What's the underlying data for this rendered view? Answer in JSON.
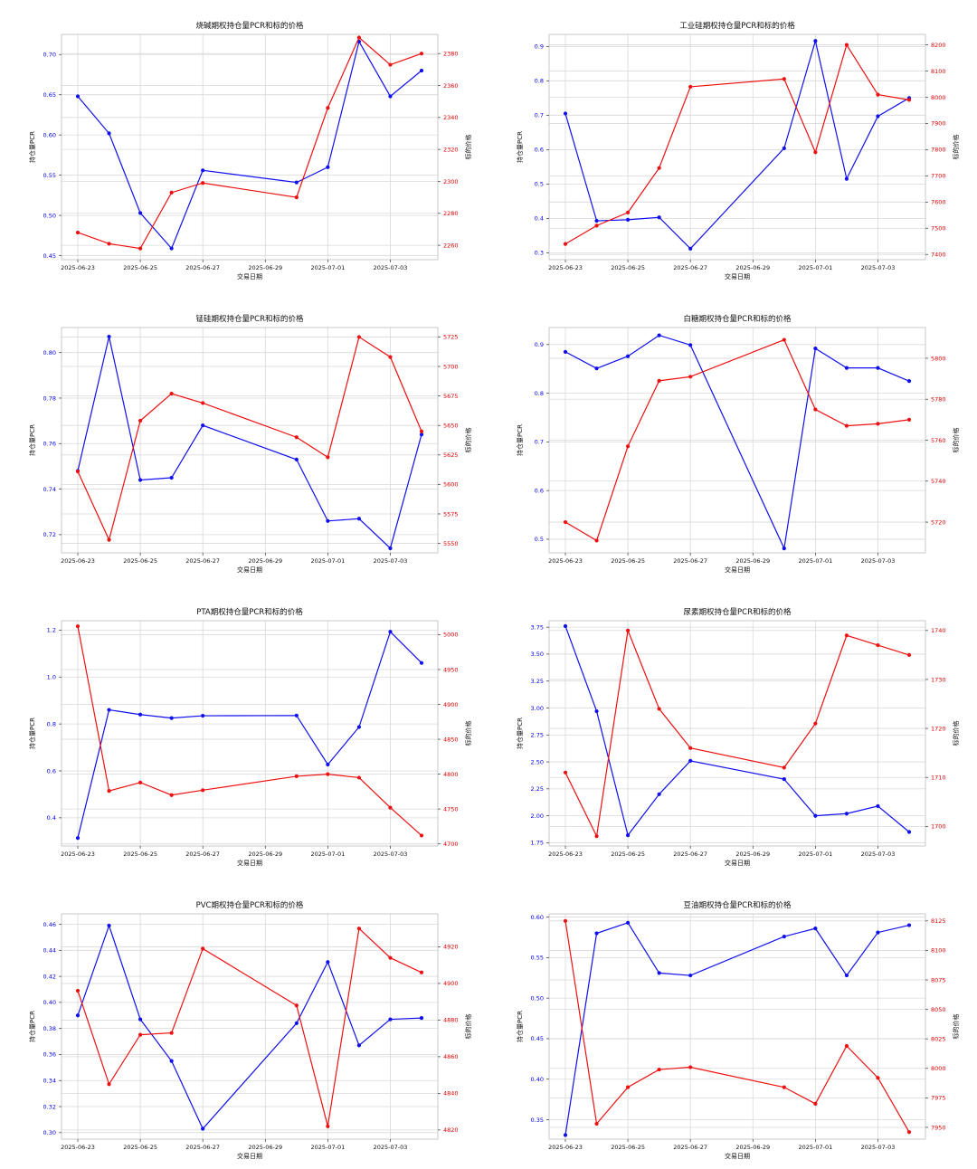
{
  "chart_data": [
    {
      "type": "line",
      "title": "烧碱期权持仓量PCR和标的价格",
      "xlabel": "交易日期",
      "ylabel_left": "持仓量PCR",
      "ylabel_right": "标的价格",
      "x": [
        "2025-06-23",
        "2025-06-24",
        "2025-06-25",
        "2025-06-26",
        "2025-06-27",
        "2025-06-30",
        "2025-07-01",
        "2025-07-02",
        "2025-07-03",
        "2025-07-04"
      ],
      "x_ticks": [
        "2025-06-23",
        "2025-06-25",
        "2025-06-27",
        "2025-06-29",
        "2025-07-01",
        "2025-07-03"
      ],
      "left_ylim": [
        0.445,
        0.725
      ],
      "left_ticks": [
        0.45,
        0.5,
        0.55,
        0.6,
        0.65,
        0.7
      ],
      "left_tick_labels": [
        "0.45",
        "0.50",
        "0.55",
        "0.60",
        "0.65",
        "0.70"
      ],
      "right_ylim": [
        2251,
        2392
      ],
      "right_ticks": [
        2260,
        2280,
        2300,
        2320,
        2340,
        2360,
        2380
      ],
      "right_tick_labels": [
        "2260",
        "2280",
        "2300",
        "2320",
        "2340",
        "2360",
        "2380"
      ],
      "series": [
        {
          "axis": "left",
          "color": "#1010ee",
          "values": [
            0.648,
            0.602,
            0.503,
            0.459,
            0.556,
            0.541,
            0.56,
            0.716,
            0.648,
            0.68
          ]
        },
        {
          "axis": "right",
          "color": "#ee1010",
          "values": [
            2268,
            2261,
            2258,
            2293,
            2299,
            2290,
            2346,
            2390,
            2373,
            2380
          ]
        }
      ]
    },
    {
      "type": "line",
      "title": "工业硅期权持仓量PCR和标的价格",
      "xlabel": "交易日期",
      "ylabel_left": "持仓量PCR",
      "ylabel_right": "标的价格",
      "x": [
        "2025-06-23",
        "2025-06-24",
        "2025-06-25",
        "2025-06-26",
        "2025-06-27",
        "2025-06-30",
        "2025-07-01",
        "2025-07-02",
        "2025-07-03",
        "2025-07-04"
      ],
      "x_ticks": [
        "2025-06-23",
        "2025-06-25",
        "2025-06-27",
        "2025-06-29",
        "2025-07-01",
        "2025-07-03"
      ],
      "left_ylim": [
        0.28,
        0.935
      ],
      "left_ticks": [
        0.3,
        0.4,
        0.5,
        0.6,
        0.7,
        0.8,
        0.9
      ],
      "left_tick_labels": [
        "0.3",
        "0.4",
        "0.5",
        "0.6",
        "0.7",
        "0.8",
        "0.9"
      ],
      "right_ylim": [
        7380,
        8240
      ],
      "right_ticks": [
        7400,
        7500,
        7600,
        7700,
        7800,
        7900,
        8000,
        8100,
        8200
      ],
      "right_tick_labels": [
        "7400",
        "7500",
        "7600",
        "7700",
        "7800",
        "7900",
        "8000",
        "8100",
        "8200"
      ],
      "series": [
        {
          "axis": "left",
          "color": "#1010ee",
          "values": [
            0.705,
            0.393,
            0.396,
            0.403,
            0.312,
            0.604,
            0.916,
            0.515,
            0.697,
            0.75
          ]
        },
        {
          "axis": "right",
          "color": "#ee1010",
          "values": [
            7440,
            7510,
            7560,
            7730,
            8040,
            8070,
            7790,
            8200,
            8010,
            7990
          ]
        }
      ]
    },
    {
      "type": "line",
      "title": "锰硅期权持仓量PCR和标的价格",
      "xlabel": "交易日期",
      "ylabel_left": "持仓量PCR",
      "ylabel_right": "标的价格",
      "x": [
        "2025-06-23",
        "2025-06-24",
        "2025-06-25",
        "2025-06-26",
        "2025-06-27",
        "2025-06-30",
        "2025-07-01",
        "2025-07-02",
        "2025-07-03",
        "2025-07-04"
      ],
      "x_ticks": [
        "2025-06-23",
        "2025-06-25",
        "2025-06-27",
        "2025-06-29",
        "2025-07-01",
        "2025-07-03"
      ],
      "left_ylim": [
        0.712,
        0.811
      ],
      "left_ticks": [
        0.72,
        0.74,
        0.76,
        0.78,
        0.8
      ],
      "left_tick_labels": [
        "0.72",
        "0.74",
        "0.76",
        "0.78",
        "0.80"
      ],
      "right_ylim": [
        5542,
        5733
      ],
      "right_ticks": [
        5550,
        5575,
        5600,
        5625,
        5650,
        5675,
        5700,
        5725
      ],
      "right_tick_labels": [
        "5550",
        "5575",
        "5600",
        "5625",
        "5650",
        "5675",
        "5700",
        "5725"
      ],
      "series": [
        {
          "axis": "left",
          "color": "#1010ee",
          "values": [
            0.748,
            0.807,
            0.744,
            0.745,
            0.768,
            0.753,
            0.726,
            0.727,
            0.714,
            0.764
          ]
        },
        {
          "axis": "right",
          "color": "#ee1010",
          "values": [
            5611,
            5553,
            5654,
            5677,
            5669,
            5640,
            5623,
            5725,
            5708,
            5645
          ]
        }
      ]
    },
    {
      "type": "line",
      "title": "白糖期权持仓量PCR和标的价格",
      "xlabel": "交易日期",
      "ylabel_left": "持仓量PCR",
      "ylabel_right": "标的价格",
      "x": [
        "2025-06-23",
        "2025-06-24",
        "2025-06-25",
        "2025-06-26",
        "2025-06-27",
        "2025-06-30",
        "2025-07-01",
        "2025-07-02",
        "2025-07-03",
        "2025-07-04"
      ],
      "x_ticks": [
        "2025-06-23",
        "2025-06-25",
        "2025-06-27",
        "2025-06-29",
        "2025-07-01",
        "2025-07-03"
      ],
      "left_ylim": [
        0.472,
        0.935
      ],
      "left_ticks": [
        0.5,
        0.6,
        0.7,
        0.8,
        0.9
      ],
      "left_tick_labels": [
        "0.5",
        "0.6",
        "0.7",
        "0.8",
        "0.9"
      ],
      "right_ylim": [
        5705,
        5815
      ],
      "right_ticks": [
        5720,
        5740,
        5760,
        5780,
        5800
      ],
      "right_tick_labels": [
        "5720",
        "5740",
        "5760",
        "5780",
        "5800"
      ],
      "series": [
        {
          "axis": "left",
          "color": "#1010ee",
          "values": [
            0.885,
            0.851,
            0.876,
            0.919,
            0.899,
            0.481,
            0.892,
            0.852,
            0.852,
            0.825
          ]
        },
        {
          "axis": "right",
          "color": "#ee1010",
          "values": [
            5720,
            5711,
            5757,
            5789,
            5791,
            5809,
            5775,
            5767,
            5768,
            5770
          ]
        }
      ]
    },
    {
      "type": "line",
      "title": "PTA期权持仓量PCR和标的价格",
      "xlabel": "交易日期",
      "ylabel_left": "持仓量PCR",
      "ylabel_right": "标的价格",
      "x": [
        "2025-06-23",
        "2025-06-24",
        "2025-06-25",
        "2025-06-26",
        "2025-06-27",
        "2025-06-30",
        "2025-07-01",
        "2025-07-02",
        "2025-07-03",
        "2025-07-04"
      ],
      "x_ticks": [
        "2025-06-23",
        "2025-06-25",
        "2025-06-27",
        "2025-06-29",
        "2025-07-01",
        "2025-07-03"
      ],
      "left_ylim": [
        0.28,
        1.24
      ],
      "left_ticks": [
        0.4,
        0.6,
        0.8,
        1.0,
        1.2
      ],
      "left_tick_labels": [
        "0.4",
        "0.6",
        "0.8",
        "1.0",
        "1.2"
      ],
      "right_ylim": [
        4697,
        5020
      ],
      "right_ticks": [
        4700,
        4750,
        4800,
        4850,
        4900,
        4950,
        5000
      ],
      "right_tick_labels": [
        "4700",
        "4750",
        "4800",
        "4850",
        "4900",
        "4950",
        "5000"
      ],
      "series": [
        {
          "axis": "left",
          "color": "#1010ee",
          "values": [
            0.314,
            0.86,
            0.84,
            0.825,
            0.835,
            0.836,
            0.627,
            0.787,
            1.193,
            1.06
          ]
        },
        {
          "axis": "right",
          "color": "#ee1010",
          "values": [
            5012,
            4776,
            4788,
            4770,
            4777,
            4797,
            4800,
            4795,
            4752,
            4712
          ]
        }
      ]
    },
    {
      "type": "line",
      "title": "尿素期权持仓量PCR和标的价格",
      "xlabel": "交易日期",
      "ylabel_left": "持仓量PCR",
      "ylabel_right": "标的价格",
      "x": [
        "2025-06-23",
        "2025-06-24",
        "2025-06-25",
        "2025-06-26",
        "2025-06-27",
        "2025-06-30",
        "2025-07-01",
        "2025-07-02",
        "2025-07-03",
        "2025-07-04"
      ],
      "x_ticks": [
        "2025-06-23",
        "2025-06-25",
        "2025-06-27",
        "2025-06-29",
        "2025-07-01",
        "2025-07-03"
      ],
      "left_ylim": [
        1.72,
        3.81
      ],
      "left_ticks": [
        1.75,
        2.0,
        2.25,
        2.5,
        2.75,
        3.0,
        3.25,
        3.5,
        3.75
      ],
      "left_tick_labels": [
        "1.75",
        "2.00",
        "2.25",
        "2.50",
        "2.75",
        "3.00",
        "3.25",
        "3.50",
        "3.75"
      ],
      "right_ylim": [
        1696,
        1742
      ],
      "right_ticks": [
        1700,
        1710,
        1720,
        1730,
        1740
      ],
      "right_tick_labels": [
        "1700",
        "1710",
        "1720",
        "1730",
        "1740"
      ],
      "series": [
        {
          "axis": "left",
          "color": "#1010ee",
          "values": [
            3.76,
            2.97,
            1.82,
            2.2,
            2.51,
            2.34,
            2.0,
            2.02,
            2.09,
            1.85
          ]
        },
        {
          "axis": "right",
          "color": "#ee1010",
          "values": [
            1711,
            1698,
            1740,
            1724,
            1716,
            1712,
            1721,
            1739,
            1737,
            1735
          ]
        }
      ]
    },
    {
      "type": "line",
      "title": "PVC期权持仓量PCR和标的价格",
      "xlabel": "交易日期",
      "ylabel_left": "持仓量PCR",
      "ylabel_right": "标的价格",
      "x": [
        "2025-06-23",
        "2025-06-24",
        "2025-06-25",
        "2025-06-26",
        "2025-06-27",
        "2025-06-30",
        "2025-07-01",
        "2025-07-02",
        "2025-07-03",
        "2025-07-04"
      ],
      "x_ticks": [
        "2025-06-23",
        "2025-06-25",
        "2025-06-27",
        "2025-06-29",
        "2025-07-01",
        "2025-07-03"
      ],
      "left_ylim": [
        0.295,
        0.468
      ],
      "left_ticks": [
        0.3,
        0.32,
        0.34,
        0.36,
        0.38,
        0.4,
        0.42,
        0.44,
        0.46
      ],
      "left_tick_labels": [
        "0.30",
        "0.32",
        "0.34",
        "0.36",
        "0.38",
        "0.40",
        "0.42",
        "0.44",
        "0.46"
      ],
      "right_ylim": [
        4815,
        4938
      ],
      "right_ticks": [
        4820,
        4840,
        4860,
        4880,
        4900,
        4920
      ],
      "right_tick_labels": [
        "4820",
        "4840",
        "4860",
        "4880",
        "4900",
        "4920"
      ],
      "series": [
        {
          "axis": "left",
          "color": "#1010ee",
          "values": [
            0.39,
            0.459,
            0.387,
            0.355,
            0.303,
            0.384,
            0.431,
            0.367,
            0.387,
            0.388
          ]
        },
        {
          "axis": "right",
          "color": "#ee1010",
          "values": [
            4896,
            4845,
            4872,
            4873,
            4919,
            4888,
            4822,
            4930,
            4914,
            4906
          ]
        }
      ]
    },
    {
      "type": "line",
      "title": "豆油期权持仓量PCR和标的价格",
      "xlabel": "交易日期",
      "ylabel_left": "持仓量PCR",
      "ylabel_right": "标的价格",
      "x": [
        "2025-06-23",
        "2025-06-24",
        "2025-06-25",
        "2025-06-26",
        "2025-06-27",
        "2025-06-30",
        "2025-07-01",
        "2025-07-02",
        "2025-07-03",
        "2025-07-04"
      ],
      "x_ticks": [
        "2025-06-23",
        "2025-06-25",
        "2025-06-27",
        "2025-06-29",
        "2025-07-01",
        "2025-07-03"
      ],
      "left_ylim": [
        0.326,
        0.604
      ],
      "left_ticks": [
        0.35,
        0.4,
        0.45,
        0.5,
        0.55,
        0.6
      ],
      "left_tick_labels": [
        "0.35",
        "0.40",
        "0.45",
        "0.50",
        "0.55",
        "0.60"
      ],
      "right_ylim": [
        7940,
        8131
      ],
      "right_ticks": [
        7950,
        7975,
        8000,
        8025,
        8050,
        8075,
        8100,
        8125
      ],
      "right_tick_labels": [
        "7950",
        "7975",
        "8000",
        "8025",
        "8050",
        "8075",
        "8100",
        "8125"
      ],
      "series": [
        {
          "axis": "left",
          "color": "#1010ee",
          "values": [
            0.331,
            0.58,
            0.593,
            0.531,
            0.528,
            0.576,
            0.586,
            0.528,
            0.581,
            0.59
          ]
        },
        {
          "axis": "right",
          "color": "#ee1010",
          "values": [
            8125,
            7953,
            7984,
            7999,
            8001,
            7984,
            7970,
            8019,
            7992,
            7946
          ]
        }
      ]
    }
  ]
}
